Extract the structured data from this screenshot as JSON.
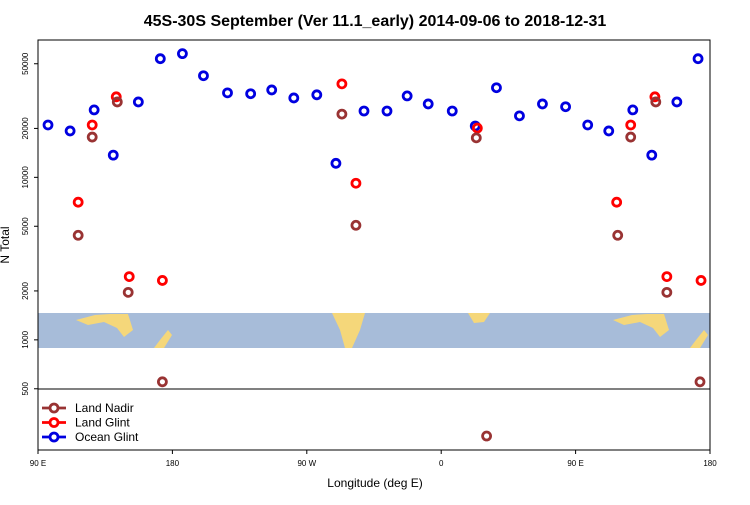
{
  "chart_data": {
    "type": "scatter",
    "title": "45S-30S September (Ver 11.1_early)   2014-09-06 to 2018-12-31",
    "x_label": "Longitude (deg E)",
    "y_label": "N Total",
    "log_y": true,
    "legend": "bottom-left",
    "xlim": [
      90,
      540
    ],
    "ylim": [
      210,
      70000
    ],
    "xticks": [
      {
        "value": 90,
        "label": "90 E"
      },
      {
        "value": 180,
        "label": "180"
      },
      {
        "value": 270,
        "label": "90 W"
      },
      {
        "value": 360,
        "label": "0"
      },
      {
        "value": 450,
        "label": "90 E"
      },
      {
        "value": 540,
        "label": "180"
      }
    ],
    "yticks": [
      500,
      1000,
      2000,
      5000,
      10000,
      20000,
      50000
    ],
    "series": [
      {
        "name": "Land Nadir",
        "color": "#993333",
        "x": [
          116.9,
          126.3,
          143.1,
          150.4,
          173.3,
          293.5,
          302.9,
          383.5,
          390.4,
          478.2,
          486.9,
          503.7,
          511.1,
          533.3
        ],
        "values": [
          4400,
          17700,
          29100,
          1960,
          552,
          24500,
          5070,
          17500,
          256,
          4400,
          17700,
          29100,
          1960,
          552
        ]
      },
      {
        "name": "Land Glint",
        "color": "#ff0000",
        "x": [
          116.9,
          126.3,
          142.4,
          151.1,
          173.3,
          293.5,
          302.9,
          384.2,
          477.5,
          486.9,
          503.1,
          511.1,
          534
        ],
        "values": [
          7030,
          21000,
          31300,
          2450,
          2320,
          37600,
          9200,
          20100,
          7030,
          21000,
          31300,
          2450,
          2320
        ]
      },
      {
        "name": "Ocean Glint",
        "color": "#0000e0",
        "x": [
          96.7,
          111.5,
          127.6,
          140.4,
          157.2,
          171.9,
          186.7,
          200.8,
          216.9,
          232.4,
          246.5,
          261.3,
          276.7,
          289.5,
          308.3,
          323.7,
          337.2,
          351.3,
          367.4,
          382.8,
          397,
          412.4,
          427.8,
          443.3,
          458.1,
          472.2,
          488.3,
          501,
          517.8,
          532
        ],
        "values": [
          21000,
          19300,
          26000,
          13700,
          29100,
          53700,
          57700,
          42200,
          33100,
          32700,
          34500,
          30800,
          32200,
          12200,
          25600,
          25600,
          31700,
          28300,
          25600,
          20700,
          35600,
          23900,
          28300,
          27200,
          21000,
          19300,
          26000,
          13700,
          29100,
          53700
        ]
      }
    ]
  }
}
